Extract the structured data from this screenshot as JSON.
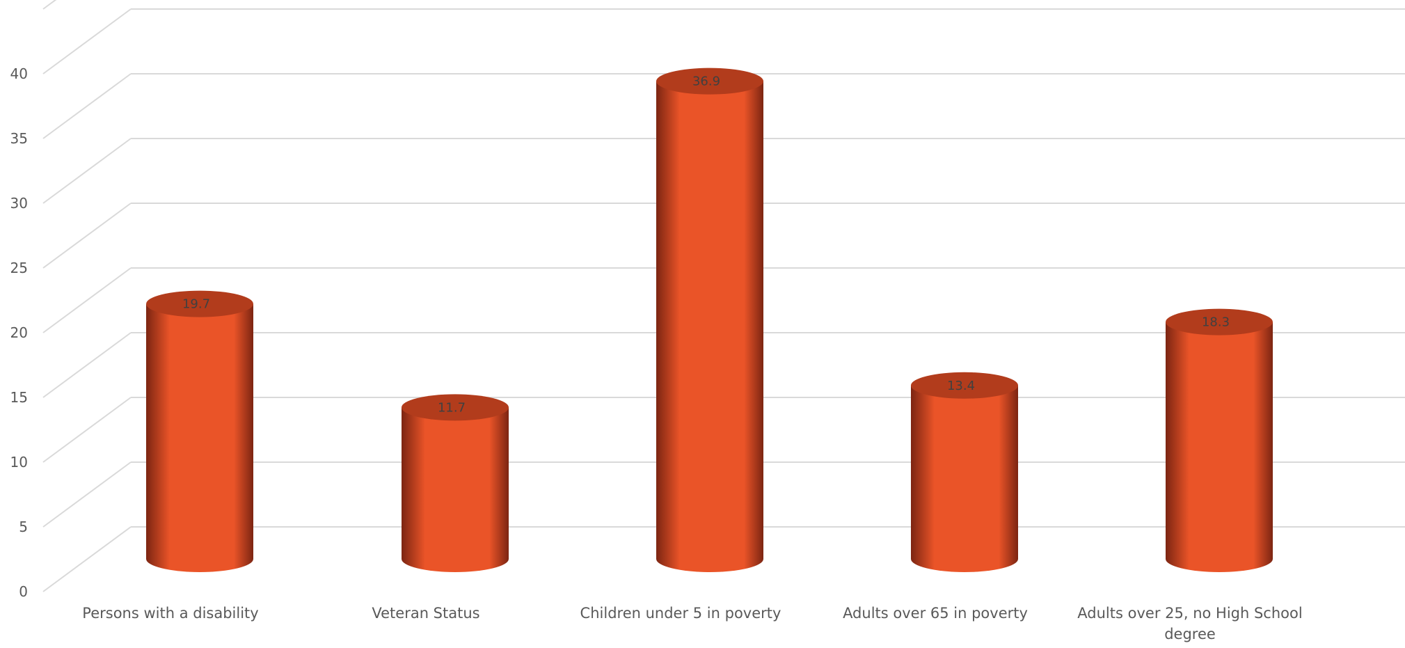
{
  "chart_data": {
    "type": "bar",
    "style": "3d-cylinder",
    "title": "",
    "xlabel": "",
    "ylabel": "",
    "categories": [
      [
        "Persons with a disability"
      ],
      [
        "Veteran Status"
      ],
      [
        "Children under 5 in poverty"
      ],
      [
        "Adults over 65 in poverty"
      ],
      [
        "Adults over 25, no High School",
        "degree"
      ]
    ],
    "values": [
      19.7,
      11.7,
      36.9,
      13.4,
      18.3
    ],
    "value_labels": [
      "19.7",
      "11.7",
      "36.9",
      "13.4",
      "18.3"
    ],
    "ylim": [
      0,
      40
    ],
    "yticks": [
      0,
      5,
      10,
      15,
      20,
      25,
      30,
      35,
      40
    ],
    "grid": true,
    "legend": "none",
    "colors": {
      "bar": "#ea5428",
      "bar_dark": "#7c2512",
      "bar_top": "#b23c1c",
      "grid": "#d9d9d9",
      "text": "#595959"
    }
  }
}
